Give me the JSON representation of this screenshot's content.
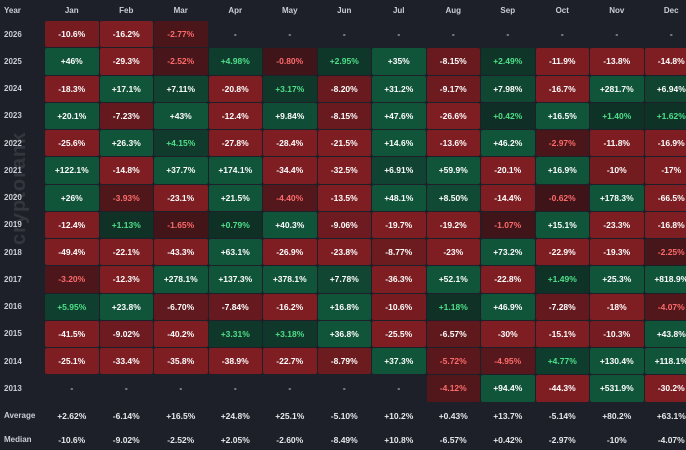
{
  "watermark": "cryptorank",
  "chart_data": {
    "type": "heatmap",
    "title": "",
    "corner_label": "Year",
    "months": [
      "Jan",
      "Feb",
      "Mar",
      "Apr",
      "May",
      "Jun",
      "Jul",
      "Aug",
      "Sep",
      "Oct",
      "Nov",
      "Dec"
    ],
    "rows": [
      {
        "year": "2026",
        "values": [
          "-10.6%",
          "-16.2%",
          "-2.77%",
          "-",
          "-",
          "-",
          "-",
          "-",
          "-",
          "-",
          "-",
          "-"
        ]
      },
      {
        "year": "2025",
        "values": [
          "+46%",
          "-29.3%",
          "-2.52%",
          "+4.98%",
          "-0.80%",
          "+2.95%",
          "+35%",
          "-8.15%",
          "+2.49%",
          "-11.9%",
          "-13.8%",
          "-14.8%"
        ]
      },
      {
        "year": "2024",
        "values": [
          "-18.3%",
          "+17.1%",
          "+7.11%",
          "-20.8%",
          "+3.17%",
          "-8.20%",
          "+31.2%",
          "-9.17%",
          "+7.98%",
          "-16.7%",
          "+281.7%",
          "+6.94%"
        ]
      },
      {
        "year": "2023",
        "values": [
          "+20.1%",
          "-7.23%",
          "+43%",
          "-12.4%",
          "+9.84%",
          "-8.15%",
          "+47.6%",
          "-26.6%",
          "+0.42%",
          "+16.5%",
          "+1.40%",
          "+1.62%"
        ]
      },
      {
        "year": "2022",
        "values": [
          "-25.6%",
          "+26.3%",
          "+4.15%",
          "-27.8%",
          "-28.4%",
          "-21.5%",
          "+14.6%",
          "-13.6%",
          "+46.2%",
          "-2.97%",
          "-11.8%",
          "-16.9%"
        ]
      },
      {
        "year": "2021",
        "values": [
          "+122.1%",
          "-14.8%",
          "+37.7%",
          "+174.1%",
          "-34.4%",
          "-32.5%",
          "+6.91%",
          "+59.9%",
          "-20.1%",
          "+16.9%",
          "-10%",
          "-17%"
        ]
      },
      {
        "year": "2020",
        "values": [
          "+26%",
          "-3.93%",
          "-23.1%",
          "+21.5%",
          "-4.40%",
          "-13.5%",
          "+48.1%",
          "+8.50%",
          "-14.4%",
          "-0.62%",
          "+178.3%",
          "-66.5%"
        ]
      },
      {
        "year": "2019",
        "values": [
          "-12.4%",
          "+1.13%",
          "-1.65%",
          "+0.79%",
          "+40.3%",
          "-9.06%",
          "-19.7%",
          "-19.2%",
          "-1.07%",
          "+15.1%",
          "-23.3%",
          "-16.8%"
        ]
      },
      {
        "year": "2018",
        "values": [
          "-49.4%",
          "-22.1%",
          "-43.3%",
          "+63.1%",
          "-26.9%",
          "-23.8%",
          "-8.77%",
          "-23%",
          "+73.2%",
          "-22.9%",
          "-19.3%",
          "-2.25%"
        ]
      },
      {
        "year": "2017",
        "values": [
          "-3.20%",
          "-12.3%",
          "+278.1%",
          "+137.3%",
          "+378.1%",
          "+7.78%",
          "-36.3%",
          "+52.1%",
          "-22.8%",
          "+1.49%",
          "+25.3%",
          "+818.9%"
        ]
      },
      {
        "year": "2016",
        "values": [
          "+5.95%",
          "+23.8%",
          "-6.70%",
          "-7.84%",
          "-16.2%",
          "+16.8%",
          "-10.6%",
          "+1.18%",
          "+46.9%",
          "-7.28%",
          "-18%",
          "-4.07%"
        ]
      },
      {
        "year": "2015",
        "values": [
          "-41.5%",
          "-9.02%",
          "-40.2%",
          "+3.31%",
          "+3.18%",
          "+36.8%",
          "-25.5%",
          "-6.57%",
          "-30%",
          "-15.1%",
          "-10.3%",
          "+43.8%"
        ]
      },
      {
        "year": "2014",
        "values": [
          "-25.1%",
          "-33.4%",
          "-35.8%",
          "-38.9%",
          "-22.7%",
          "-8.79%",
          "+37.3%",
          "-5.72%",
          "-4.95%",
          "+4.77%",
          "+130.4%",
          "+118.1%"
        ]
      },
      {
        "year": "2013",
        "values": [
          "-",
          "-",
          "-",
          "-",
          "-",
          "-",
          "-",
          "-4.12%",
          "+94.4%",
          "-44.3%",
          "+531.9%",
          "-30.2%"
        ]
      }
    ],
    "summary": [
      {
        "label": "Average",
        "values": [
          "+2.62%",
          "-6.14%",
          "+16.5%",
          "+24.8%",
          "+25.1%",
          "-5.10%",
          "+10.2%",
          "+0.43%",
          "+13.7%",
          "-5.14%",
          "+80.2%",
          "+63.1%"
        ]
      },
      {
        "label": "Median",
        "values": [
          "-10.6%",
          "-9.02%",
          "-2.52%",
          "+2.05%",
          "-2.60%",
          "-8.49%",
          "+10.8%",
          "-6.57%",
          "+0.42%",
          "-2.97%",
          "-10%",
          "-4.07%"
        ]
      }
    ],
    "colors": {
      "strong_positive": "#10543a",
      "weak_positive": "#0f2d24",
      "strong_negative": "#7e1d22",
      "weak_negative": "#3a1418",
      "empty": "#1d2028"
    }
  }
}
